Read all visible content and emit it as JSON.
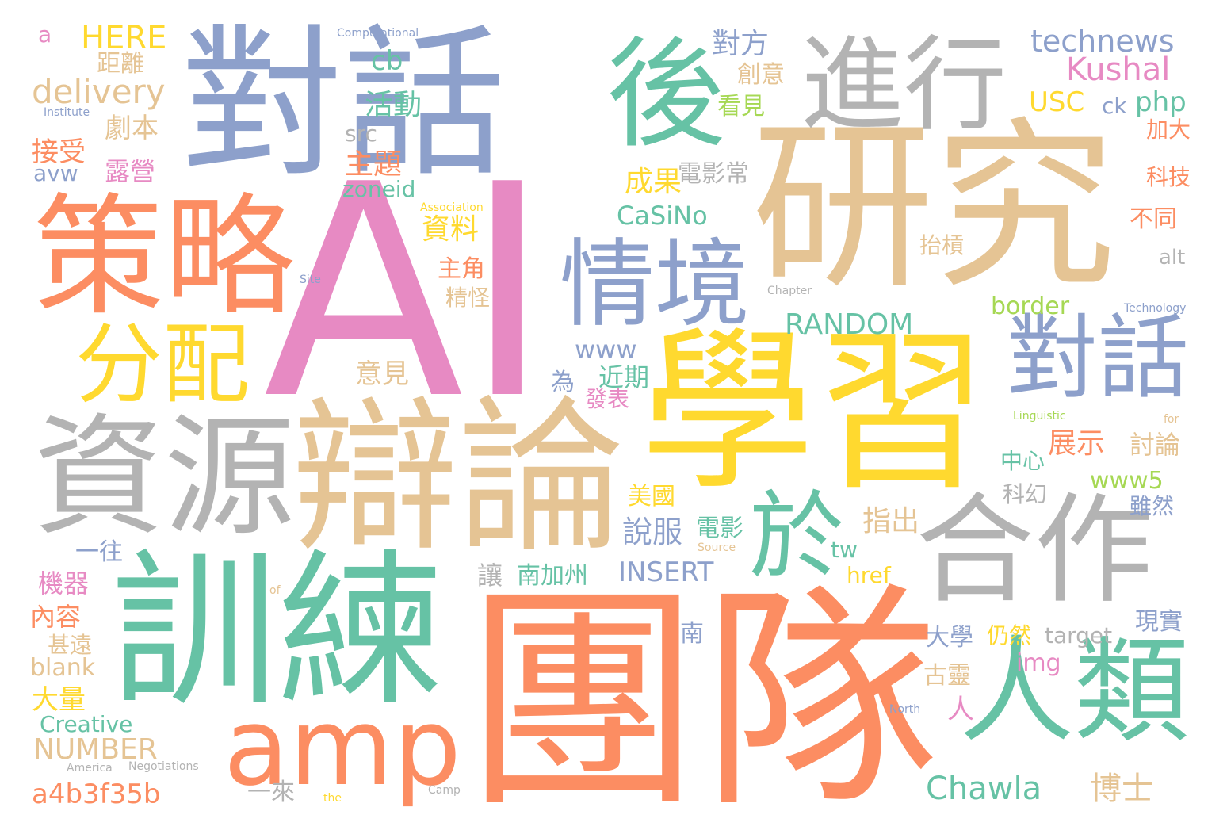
{
  "palette": {
    "blue": "#8da0cb",
    "green": "#66c2a5",
    "orange": "#fc8d62",
    "pink": "#e78ac3",
    "lime": "#a6d854",
    "yellow": "#ffd92f",
    "tan": "#e5c494",
    "gray": "#b3b3b3"
  },
  "words": [
    "AI",
    "團隊",
    "研究",
    "學習",
    "辯論",
    "對話",
    "訓練",
    "策略",
    "資源",
    "合作",
    "進行",
    "後",
    "人類",
    "情境",
    "對話",
    "分配",
    "amp",
    "於",
    "technews",
    "Kushal",
    "HERE",
    "delivery",
    "cb",
    "活動",
    "對方",
    "創意",
    "看見",
    "USC",
    "ck",
    "php",
    "劇本",
    "距離",
    "接受",
    "露營",
    "avw",
    "主題",
    "src",
    "電影常",
    "成果",
    "科技",
    "加大",
    "CaSiNo",
    "zoneid",
    "資料",
    "RANDOM",
    "抬槓",
    "不同",
    "alt",
    "主角",
    "精怪",
    "border",
    "www",
    "意見",
    "近期",
    "為",
    "發表",
    "大學",
    "古靈",
    "指出",
    "展示",
    "討論",
    "中心",
    "www5",
    "科幻",
    "雖然",
    "美國",
    "說服",
    "電影",
    "一往",
    "機器",
    "讓",
    "南加州",
    "INSERT",
    "tw",
    "href",
    "內容",
    "甚遠",
    "南",
    "仍然",
    "target",
    "現實",
    "blank",
    "img",
    "大量",
    "人",
    "Creative",
    "NUMBER",
    "a4b3f35b",
    "一來",
    "Chawla",
    "博士",
    "a",
    "Computational",
    "Institute",
    "Association",
    "Technology",
    "Linguistic",
    "North",
    "America",
    "Negotiations",
    "Camp",
    "the",
    "Source",
    "Chapter",
    "Site",
    "of",
    "for"
  ]
}
